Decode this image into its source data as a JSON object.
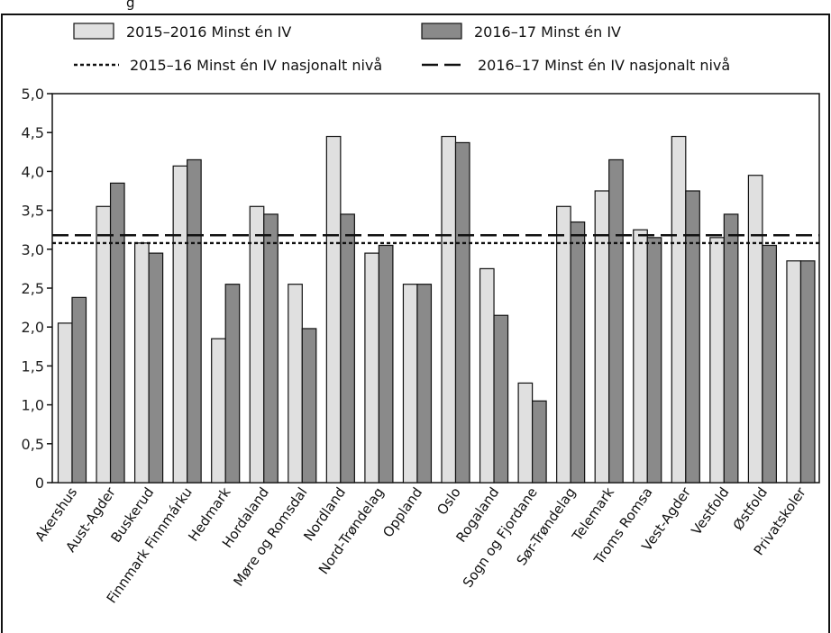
{
  "figure_title_fragment": "g",
  "colors": {
    "series_2015_16_fill": "#e0e0e0",
    "series_2016_17_fill": "#8a8a8a",
    "stroke": "#111111"
  },
  "legend": {
    "items": [
      {
        "label": "2015–2016 Minst én IV",
        "kind": "bar",
        "series": 0
      },
      {
        "label": "2016–17 Minst én IV",
        "kind": "bar",
        "series": 1
      },
      {
        "label": "2015–16 Minst én IV nasjonalt nivå",
        "kind": "dotted"
      },
      {
        "label": "2016–17 Minst én IV nasjonalt nivå",
        "kind": "dashed"
      }
    ]
  },
  "chart_data": {
    "type": "bar",
    "categories": [
      "Akershus",
      "Aust-Agder",
      "Buskerud",
      "Finnmark Finnmárku",
      "Hedmark",
      "Hordaland",
      "Møre og Romsdal",
      "Nordland",
      "Nord-Trøndelag",
      "Oppland",
      "Oslo",
      "Rogaland",
      "Sogn og Fjordane",
      "Sør-Trøndelag",
      "Telemark",
      "Troms Romsa",
      "Vest-Agder",
      "Vestfold",
      "Østfold",
      "Privatskoler"
    ],
    "series": [
      {
        "name": "2015–2016 Minst én IV",
        "values": [
          2.05,
          3.55,
          3.08,
          4.07,
          1.85,
          3.55,
          2.55,
          4.45,
          2.95,
          2.55,
          4.45,
          2.75,
          1.28,
          3.55,
          3.75,
          3.25,
          4.45,
          3.15,
          3.95,
          2.85
        ]
      },
      {
        "name": "2016–17 Minst én IV",
        "values": [
          2.38,
          3.85,
          2.95,
          4.15,
          2.55,
          3.45,
          1.98,
          3.45,
          3.05,
          2.55,
          4.37,
          2.15,
          1.05,
          3.35,
          4.15,
          3.15,
          3.75,
          3.45,
          3.05,
          2.85
        ]
      }
    ],
    "reference_lines": [
      {
        "name": "2015–16 Minst én IV nasjonalt nivå",
        "value": 3.08,
        "style": "dotted"
      },
      {
        "name": "2016–17 Minst én IV nasjonalt nivå",
        "value": 3.18,
        "style": "dashed"
      }
    ],
    "ylim": [
      0,
      5.0
    ],
    "yticks": [
      "0",
      "0,5",
      "1,0",
      "1,5",
      "2,0",
      "2,5",
      "3,0",
      "3,5",
      "4,0",
      "4,5",
      "5,0"
    ],
    "grid": false,
    "legend_position": "top"
  }
}
